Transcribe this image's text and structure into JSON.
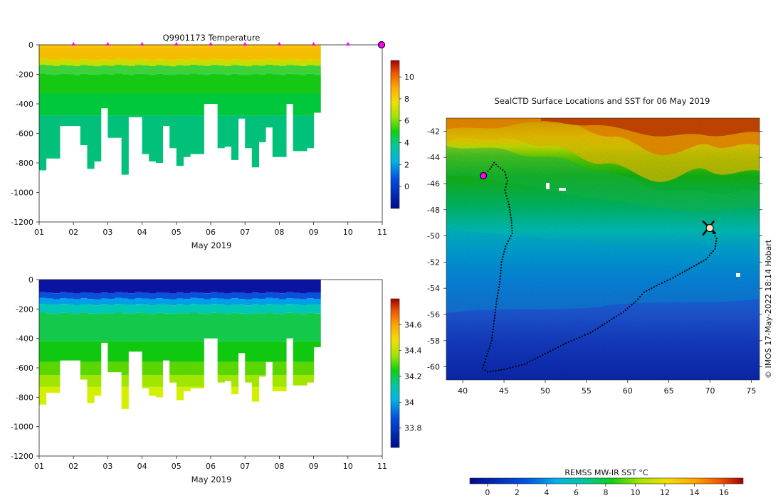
{
  "chart_data": [
    {
      "type": "heatmap",
      "id": "temperature",
      "title": "Q9901173  Temperature",
      "xlabel": "May 2019",
      "ylabel": "",
      "x_tick_labels": [
        "01",
        "02",
        "03",
        "04",
        "05",
        "06",
        "07",
        "08",
        "09",
        "10",
        "11"
      ],
      "x_range_days": [
        1,
        11
      ],
      "ylim": [
        -1200,
        0
      ],
      "y_ticks": [
        0,
        -200,
        -400,
        -600,
        -800,
        -1000,
        -1200
      ],
      "colorbar": {
        "range": [
          -2,
          11.5
        ],
        "ticks": [
          0,
          2,
          4,
          6,
          8,
          10
        ]
      },
      "surface_markers_day": [
        2,
        3,
        4,
        5,
        6,
        7,
        8,
        9,
        10
      ],
      "final_marker_day": 11,
      "profiles": {
        "start_day": 1.0,
        "step_day": 0.2,
        "max_depth_m": [
          850,
          770,
          770,
          550,
          550,
          550,
          680,
          840,
          790,
          430,
          630,
          630,
          880,
          490,
          490,
          740,
          790,
          800,
          550,
          700,
          820,
          760,
          740,
          740,
          400,
          400,
          700,
          690,
          780,
          500,
          700,
          830,
          660,
          560,
          760,
          760,
          400,
          720,
          720,
          700,
          460
        ]
      }
    },
    {
      "type": "heatmap",
      "id": "salinity",
      "title": "",
      "xlabel": "May 2019",
      "ylabel": "",
      "x_tick_labels": [
        "01",
        "02",
        "03",
        "04",
        "05",
        "06",
        "07",
        "08",
        "09",
        "10",
        "11"
      ],
      "x_range_days": [
        1,
        11
      ],
      "ylim": [
        -1200,
        0
      ],
      "y_ticks": [
        0,
        -200,
        -400,
        -600,
        -800,
        -1000,
        -1200
      ],
      "colorbar": {
        "range": [
          33.65,
          34.8
        ],
        "ticks": [
          33.8,
          34,
          34.2,
          34.4,
          34.6
        ]
      },
      "profiles": "same as temperature"
    },
    {
      "type": "heatmap",
      "id": "sst_map",
      "title": "SealCTD Surface Locations and SST for 06 May 2019",
      "xlim": [
        38,
        76
      ],
      "ylim": [
        -61,
        -41
      ],
      "x_ticks": [
        40,
        45,
        50,
        55,
        60,
        65,
        70,
        75
      ],
      "y_ticks": [
        -42,
        -44,
        -46,
        -48,
        -50,
        -52,
        -54,
        -56,
        -58,
        -60
      ],
      "colorbar": {
        "label": "REMSS MW-IR SST °C",
        "range": [
          -1.2,
          17.3
        ],
        "ticks": [
          0,
          2,
          4,
          6,
          8,
          10,
          12,
          14,
          16
        ]
      },
      "credit": "© IMOS 17-May-2022 18:14 Hobart",
      "track": [
        [
          42.5,
          -45.4
        ],
        [
          43.3,
          -44.9
        ],
        [
          43.8,
          -44.4
        ],
        [
          44.3,
          -44.7
        ],
        [
          45.1,
          -45.1
        ],
        [
          45.4,
          -45.8
        ],
        [
          45.1,
          -46.5
        ],
        [
          45.6,
          -47.6
        ],
        [
          45.9,
          -48.8
        ],
        [
          46.0,
          -49.8
        ],
        [
          45.2,
          -50.8
        ],
        [
          44.7,
          -52.0
        ],
        [
          44.5,
          -53.5
        ],
        [
          44.1,
          -55.0
        ],
        [
          43.8,
          -56.5
        ],
        [
          43.5,
          -58.0
        ],
        [
          42.9,
          -59.2
        ],
        [
          42.4,
          -60.1
        ],
        [
          43.0,
          -60.4
        ],
        [
          45.0,
          -60.2
        ],
        [
          47.5,
          -59.8
        ],
        [
          50.0,
          -59.0
        ],
        [
          52.5,
          -58.2
        ],
        [
          55.5,
          -57.4
        ],
        [
          57.5,
          -56.6
        ],
        [
          59.5,
          -55.8
        ],
        [
          61.0,
          -55.0
        ],
        [
          62.0,
          -54.3
        ],
        [
          63.5,
          -53.8
        ],
        [
          65.5,
          -53.2
        ],
        [
          67.5,
          -52.5
        ],
        [
          69.5,
          -51.8
        ],
        [
          70.6,
          -51.0
        ],
        [
          70.8,
          -50.2
        ],
        [
          70.2,
          -49.6
        ],
        [
          69.5,
          -49.3
        ]
      ],
      "start_marker": [
        42.5,
        -45.4
      ],
      "current_position": [
        69.8,
        -49.4
      ]
    }
  ]
}
